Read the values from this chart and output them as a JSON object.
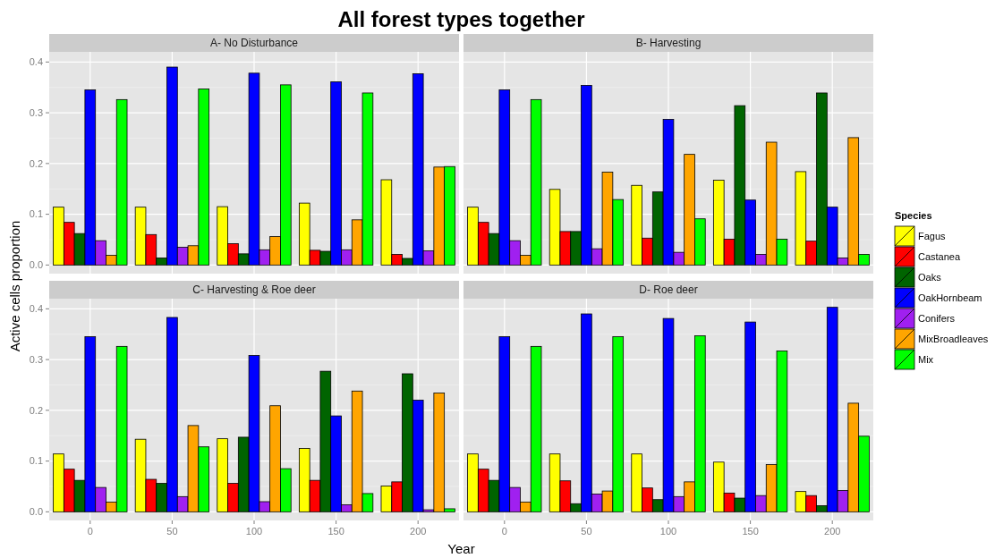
{
  "chart_data": [
    {
      "type": "bar",
      "title": "A- No Disturbance",
      "annotations": [
        "All forest types together"
      ],
      "ylabel": "Active cells proportion",
      "legend": "right",
      "legend_title": "Species",
      "tick_labels": "y",
      "grid": true,
      "categories": [
        "0",
        "50",
        "100",
        "150",
        "200"
      ],
      "ylim": [
        -0.017,
        0.42
      ],
      "yticks": [
        {
          "value": 0,
          "label": "0.0"
        },
        0.1,
        0.2,
        0.3,
        0.4
      ],
      "series": [
        {
          "name": "Fagus",
          "color": "#ffff00",
          "values": [
            0.114,
            0.114,
            0.115,
            0.122,
            0.168
          ]
        },
        {
          "name": "Castanea",
          "color": "#ff0000",
          "values": [
            0.084,
            0.06,
            0.042,
            0.029,
            0.021
          ]
        },
        {
          "name": "Oaks",
          "color": "#006400",
          "values": [
            0.062,
            0.014,
            0.022,
            0.027,
            0.013
          ]
        },
        {
          "name": "OakHornbeam",
          "color": "#0000ff",
          "values": [
            0.345,
            0.39,
            0.378,
            0.361,
            0.377
          ]
        },
        {
          "name": "Conifers",
          "color": "#a020f0",
          "values": [
            0.048,
            0.035,
            0.03,
            0.03,
            0.028
          ]
        },
        {
          "name": "MixBroadleaves",
          "color": "#ffa500",
          "values": [
            0.019,
            0.038,
            0.056,
            0.089,
            0.193
          ]
        },
        {
          "name": "Mix",
          "color": "#00ff00",
          "values": [
            0.326,
            0.347,
            0.355,
            0.339,
            0.194
          ]
        }
      ]
    },
    {
      "type": "bar",
      "title": "B- Harvesting",
      "tick_labels": false,
      "grid": true,
      "categories": [
        "0",
        "50",
        "100",
        "150",
        "200"
      ],
      "ylim": [
        -0.017,
        0.42
      ],
      "yticks": [
        0,
        0.1,
        0.2,
        0.3,
        0.4
      ],
      "series": [
        {
          "color": "#ffff00",
          "values": [
            0.114,
            0.149,
            0.157,
            0.167,
            0.184
          ]
        },
        {
          "color": "#ff0000",
          "values": [
            0.084,
            0.066,
            0.053,
            0.051,
            0.047
          ]
        },
        {
          "color": "#006400",
          "values": [
            0.062,
            0.066,
            0.144,
            0.314,
            0.339
          ]
        },
        {
          "color": "#0000ff",
          "values": [
            0.345,
            0.354,
            0.287,
            0.128,
            0.114
          ]
        },
        {
          "color": "#a020f0",
          "values": [
            0.048,
            0.032,
            0.025,
            0.021,
            0.014
          ]
        },
        {
          "color": "#ffa500",
          "values": [
            0.019,
            0.183,
            0.218,
            0.242,
            0.251
          ]
        },
        {
          "color": "#00ff00",
          "values": [
            0.326,
            0.129,
            0.091,
            0.051,
            0.021
          ]
        }
      ]
    },
    {
      "type": "bar",
      "title": "C- Harvesting & Roe deer",
      "xlabel": "Year",
      "grid": true,
      "categories": [
        "0",
        "50",
        "100",
        "150",
        "200"
      ],
      "ylim": [
        -0.017,
        0.42
      ],
      "yticks": [
        {
          "value": 0,
          "label": "0.0"
        },
        0.1,
        0.2,
        0.3,
        0.4
      ],
      "series": [
        {
          "color": "#ffff00",
          "values": [
            0.114,
            0.143,
            0.144,
            0.125,
            0.051
          ]
        },
        {
          "color": "#ff0000",
          "values": [
            0.084,
            0.064,
            0.056,
            0.062,
            0.059
          ]
        },
        {
          "color": "#006400",
          "values": [
            0.062,
            0.056,
            0.147,
            0.277,
            0.272
          ]
        },
        {
          "color": "#0000ff",
          "values": [
            0.345,
            0.383,
            0.308,
            0.189,
            0.22
          ]
        },
        {
          "color": "#a020f0",
          "values": [
            0.048,
            0.03,
            0.02,
            0.014,
            0.004
          ]
        },
        {
          "color": "#ffa500",
          "values": [
            0.019,
            0.17,
            0.209,
            0.238,
            0.234
          ]
        },
        {
          "color": "#00ff00",
          "values": [
            0.326,
            0.128,
            0.085,
            0.036,
            0.006
          ]
        }
      ]
    },
    {
      "type": "bar",
      "title": "D- Roe deer",
      "tick_labels": "x",
      "grid": true,
      "categories": [
        "0",
        "50",
        "100",
        "150",
        "200"
      ],
      "ylim": [
        -0.017,
        0.42
      ],
      "yticks": [
        0,
        0.1,
        0.2,
        0.3,
        0.4
      ],
      "series": [
        {
          "color": "#ffff00",
          "values": [
            0.114,
            0.114,
            0.114,
            0.098,
            0.04
          ]
        },
        {
          "color": "#ff0000",
          "values": [
            0.084,
            0.061,
            0.047,
            0.037,
            0.032
          ]
        },
        {
          "color": "#006400",
          "values": [
            0.062,
            0.016,
            0.024,
            0.027,
            0.012
          ]
        },
        {
          "color": "#0000ff",
          "values": [
            0.345,
            0.39,
            0.381,
            0.374,
            0.403
          ]
        },
        {
          "color": "#a020f0",
          "values": [
            0.048,
            0.035,
            0.03,
            0.032,
            0.042
          ]
        },
        {
          "color": "#ffa500",
          "values": [
            0.019,
            0.041,
            0.059,
            0.093,
            0.214
          ]
        },
        {
          "color": "#00ff00",
          "values": [
            0.326,
            0.345,
            0.347,
            0.317,
            0.149
          ]
        }
      ]
    }
  ]
}
